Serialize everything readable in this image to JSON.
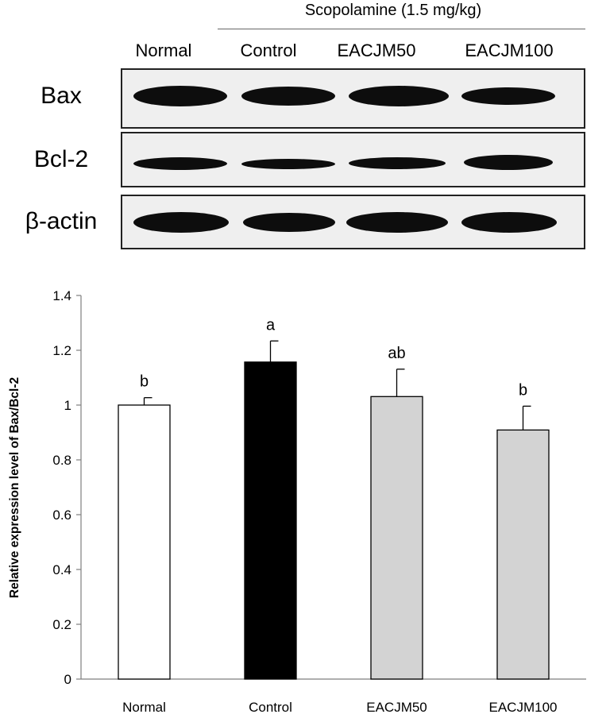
{
  "blot": {
    "treatment_header": "Scopolamine (1.5 mg/kg)",
    "lanes": [
      "Normal",
      "Control",
      "EACJM50",
      "EACJM100"
    ],
    "rows": [
      {
        "label": "Bax"
      },
      {
        "label": "Bcl-2"
      },
      {
        "label": "β-actin"
      }
    ]
  },
  "chart_data": {
    "type": "bar",
    "categories": [
      "Normal",
      "Control",
      "EACJM50",
      "EACJM100"
    ],
    "values": [
      1.0,
      1.157,
      1.031,
      0.909
    ],
    "errors": [
      0.027,
      0.077,
      0.1,
      0.087
    ],
    "significance_labels": [
      "b",
      "a",
      "ab",
      "b"
    ],
    "bar_colors": [
      "#ffffff",
      "#000000",
      "#d3d3d3",
      "#d3d3d3"
    ],
    "ylabel": "Relative expression level of Bax/Bcl-2",
    "xlabel": "",
    "ylim": [
      0,
      1.4
    ],
    "yticks": [
      "0",
      "0.2",
      "0.4",
      "0.6",
      "0.8",
      "1",
      "1.2",
      "1.4"
    ],
    "grid": false
  }
}
